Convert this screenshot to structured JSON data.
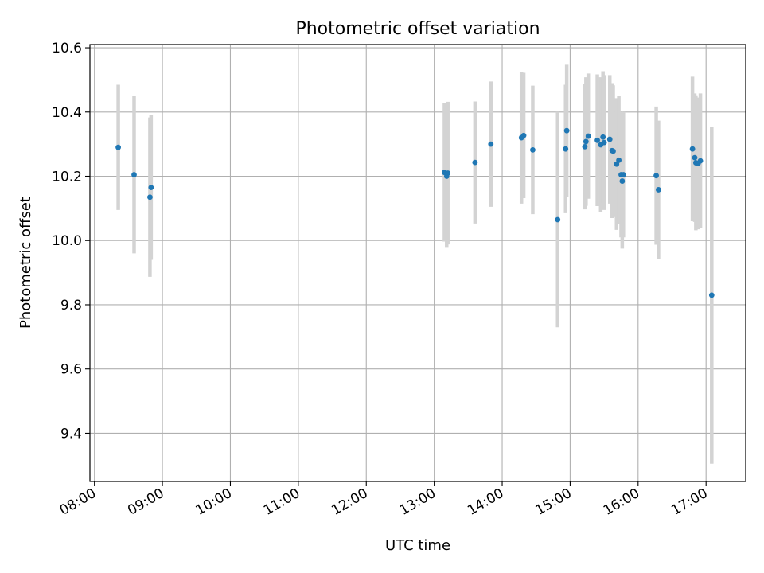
{
  "chart_data": {
    "type": "scatter",
    "title": "Photometric offset variation",
    "xlabel": "UTC time",
    "ylabel": "Photometric offset",
    "x_axis_type": "time",
    "xlim": [
      "07:56",
      "17:35"
    ],
    "ylim": [
      9.25,
      10.61
    ],
    "x_ticks": [
      "08:00",
      "09:00",
      "10:00",
      "11:00",
      "12:00",
      "13:00",
      "14:00",
      "15:00",
      "16:00",
      "17:00"
    ],
    "y_ticks": [
      9.4,
      9.6,
      9.8,
      10.0,
      10.2,
      10.4,
      10.6
    ],
    "y_tick_labels": [
      "9.4",
      "9.6",
      "9.8",
      "10.0",
      "10.2",
      "10.4",
      "10.6"
    ],
    "grid": true,
    "marker_color": "#1f77b4",
    "errorbar_color": "#d3d3d3",
    "points": [
      {
        "time": "08:21",
        "y": 10.29,
        "err": 0.195
      },
      {
        "time": "08:35",
        "y": 10.205,
        "err": 0.245
      },
      {
        "time": "08:49",
        "y": 10.135,
        "err": 0.248
      },
      {
        "time": "08:50",
        "y": 10.165,
        "err": 0.225
      },
      {
        "time": "13:09",
        "y": 10.212,
        "err": 0.215
      },
      {
        "time": "13:11",
        "y": 10.2,
        "err": 0.22
      },
      {
        "time": "13:12",
        "y": 10.21,
        "err": 0.222
      },
      {
        "time": "13:36",
        "y": 10.243,
        "err": 0.19
      },
      {
        "time": "13:50",
        "y": 10.3,
        "err": 0.195
      },
      {
        "time": "14:17",
        "y": 10.32,
        "err": 0.205
      },
      {
        "time": "14:19",
        "y": 10.327,
        "err": 0.195
      },
      {
        "time": "14:27",
        "y": 10.282,
        "err": 0.2
      },
      {
        "time": "14:49",
        "y": 10.065,
        "err": 0.335
      },
      {
        "time": "14:56",
        "y": 10.285,
        "err": 0.2
      },
      {
        "time": "14:57",
        "y": 10.342,
        "err": 0.205
      },
      {
        "time": "15:13",
        "y": 10.292,
        "err": 0.195
      },
      {
        "time": "15:14",
        "y": 10.308,
        "err": 0.2
      },
      {
        "time": "15:16",
        "y": 10.325,
        "err": 0.195
      },
      {
        "time": "15:24",
        "y": 10.312,
        "err": 0.205
      },
      {
        "time": "15:27",
        "y": 10.298,
        "err": 0.21
      },
      {
        "time": "15:29",
        "y": 10.322,
        "err": 0.205
      },
      {
        "time": "15:30",
        "y": 10.305,
        "err": 0.21
      },
      {
        "time": "15:35",
        "y": 10.315,
        "err": 0.2
      },
      {
        "time": "15:37",
        "y": 10.28,
        "err": 0.21
      },
      {
        "time": "15:38",
        "y": 10.278,
        "err": 0.205
      },
      {
        "time": "15:41",
        "y": 10.238,
        "err": 0.205
      },
      {
        "time": "15:43",
        "y": 10.25,
        "err": 0.2
      },
      {
        "time": "15:45",
        "y": 10.205,
        "err": 0.195
      },
      {
        "time": "15:46",
        "y": 10.185,
        "err": 0.21
      },
      {
        "time": "15:47",
        "y": 10.205,
        "err": 0.195
      },
      {
        "time": "16:16",
        "y": 10.202,
        "err": 0.215
      },
      {
        "time": "16:18",
        "y": 10.158,
        "err": 0.215
      },
      {
        "time": "16:48",
        "y": 10.285,
        "err": 0.225
      },
      {
        "time": "16:50",
        "y": 10.258,
        "err": 0.2
      },
      {
        "time": "16:51",
        "y": 10.242,
        "err": 0.21
      },
      {
        "time": "16:53",
        "y": 10.24,
        "err": 0.205
      },
      {
        "time": "16:55",
        "y": 10.248,
        "err": 0.21
      },
      {
        "time": "17:05",
        "y": 9.83,
        "err": 0.525
      }
    ]
  }
}
